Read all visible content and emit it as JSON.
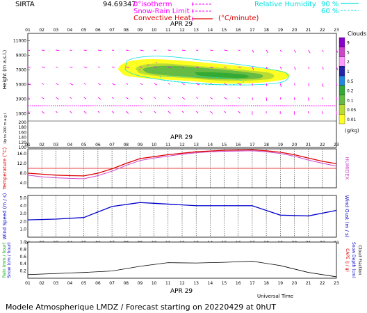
{
  "header": {
    "site": "SIRTA",
    "coords": "94.69347",
    "legend_isotherm": "0°isotherm",
    "legend_snowrain": "Snow-Rain Limit",
    "legend_convective": "Convective Heat",
    "legend_units": "(°C/minute)",
    "legend_rh": "Relative Humidity",
    "rh_90": "90 %",
    "rh_60": "60 %",
    "colors": {
      "isotherm": "#ff00ff",
      "rh": "#00e0e0",
      "convective": "#e00000"
    }
  },
  "footer": {
    "model_text": "Modele Atmospherique LMDZ / Forecast starting on 20220429 at 0hUT",
    "time_label": "Universal Time",
    "date": "APR 29"
  },
  "hours": [
    "01",
    "02",
    "03",
    "04",
    "05",
    "06",
    "07",
    "08",
    "09",
    "10",
    "11",
    "12",
    "13",
    "14",
    "15",
    "16",
    "17",
    "18",
    "19",
    "20",
    "21",
    "22",
    "23"
  ],
  "chart_data": [
    {
      "type": "heatmap",
      "ylabel": "Height (m a.s.l.)",
      "ylabel_low": "Up to 200 m a.g.l.",
      "yticks_upper": [
        1000,
        3000,
        5000,
        7000,
        9000,
        11000
      ],
      "yticks_lower": [
        100,
        120,
        140,
        160,
        180,
        200
      ],
      "colorbar": {
        "title": "Clouds",
        "unit": "(g/kg)",
        "labels": [
          "9",
          "5",
          "2",
          "1",
          "0.5",
          "0.2",
          "0.1",
          "0.05",
          "0.01"
        ],
        "colors": [
          "#8800cc",
          "#cc44cc",
          "#ff99ff",
          "#2222aa",
          "#2288dd",
          "#33aa33",
          "#66bb44",
          "#bbdd33",
          "#ffff22"
        ]
      },
      "isotherm_height_m": 2100
    },
    {
      "type": "line",
      "ylabel": "Temperature (°C)",
      "ylabel_right": "HUMIDEX",
      "yticks": [
        "4.0",
        "8.0",
        "12.0",
        "16.0"
      ],
      "ylim": [
        2,
        18
      ],
      "x": [
        "01",
        "02",
        "03",
        "04",
        "05",
        "06",
        "07",
        "08",
        "09",
        "10",
        "11",
        "12",
        "13",
        "14",
        "15",
        "16",
        "17",
        "18",
        "19",
        "20",
        "21",
        "22",
        "23"
      ],
      "series": [
        {
          "values": [
            8.0,
            7.6,
            7.2,
            7.0,
            6.9,
            8.0,
            9.8,
            12.0,
            14.0,
            14.8,
            15.6,
            16.2,
            16.8,
            17.1,
            17.4,
            17.5,
            17.6,
            17.2,
            16.6,
            15.6,
            14.2,
            12.9,
            11.9
          ]
        },
        {
          "values": [
            7.2,
            6.5,
            6.1,
            5.9,
            5.7,
            7.0,
            8.8,
            11.2,
            13.2,
            14.2,
            15.0,
            15.8,
            16.4,
            16.8,
            17.0,
            17.1,
            17.2,
            16.8,
            16.1,
            15.0,
            13.4,
            12.1,
            10.9
          ]
        }
      ],
      "hline": 10.0
    },
    {
      "type": "line",
      "ylabel": "Wind Speed (m / s)",
      "ylabel_right": "Wind Gust (m / s)",
      "yticks": [
        "1.0",
        "2.0",
        "3.0",
        "4.0",
        "5.0"
      ],
      "ylim": [
        0,
        5.3
      ],
      "x": [
        "01",
        "03",
        "05",
        "07",
        "09",
        "11",
        "13",
        "15",
        "17",
        "19",
        "21",
        "23"
      ],
      "series": [
        {
          "values": [
            2.2,
            2.3,
            2.5,
            3.9,
            4.4,
            4.2,
            4.0,
            4.0,
            4.0,
            2.8,
            2.7,
            3.4
          ]
        }
      ]
    },
    {
      "type": "line",
      "ylabel": "Rain (mm / hour)",
      "ylabel_2": "Snow (cm / hour)",
      "ylabel_right": "CAPE (J / g)",
      "ylabel_right_2": "Snow Depth (cm)",
      "ylabel_right_3": "Cloud Fraction",
      "yticks": [
        "0.2",
        "0.4",
        "0.6",
        "0.8",
        "1.0"
      ],
      "ylim": [
        0,
        1.0
      ],
      "x": [
        "01",
        "03",
        "05",
        "07",
        "09",
        "11",
        "13",
        "15",
        "17",
        "19",
        "21",
        "23"
      ],
      "series": [
        {
          "values": [
            0.1,
            0.13,
            0.16,
            0.2,
            0.33,
            0.43,
            0.42,
            0.44,
            0.47,
            0.35,
            0.16,
            0.04
          ]
        }
      ]
    }
  ]
}
